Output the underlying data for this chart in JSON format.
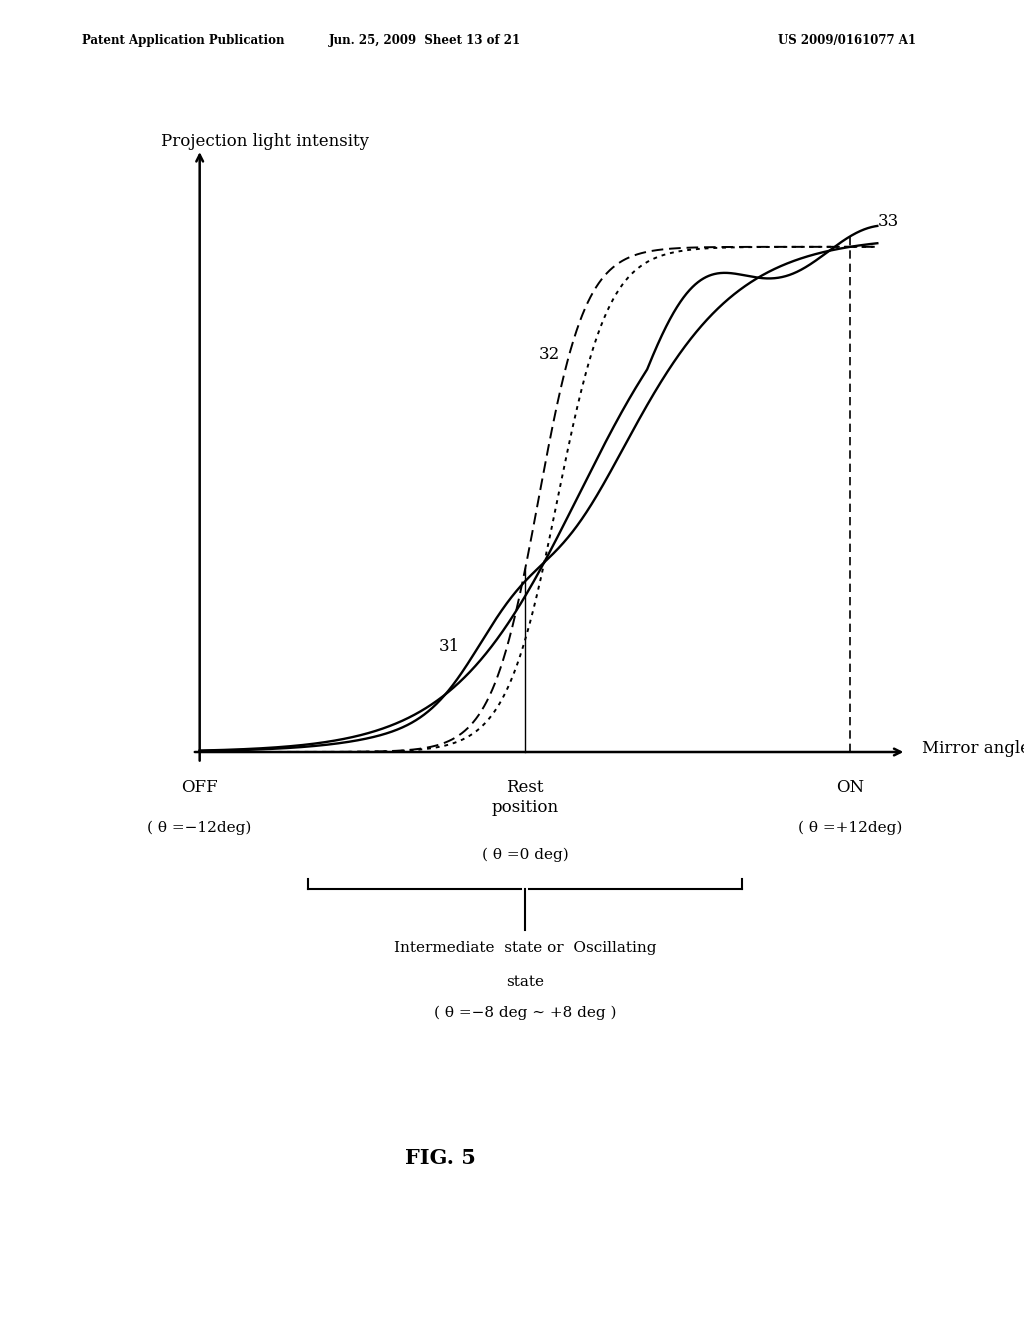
{
  "background_color": "#ffffff",
  "header_left": "Patent Application Publication",
  "header_center": "Jun. 25, 2009  Sheet 13 of 21",
  "header_right": "US 2009/0161077 A1",
  "ylabel": "Projection light intensity",
  "xlabel": "Mirror angle",
  "off_label": "OFF",
  "off_theta": "( θ =−12deg)",
  "rest_label": "Rest\nposition",
  "rest_theta": "( θ =0 deg)",
  "on_label": "ON",
  "on_theta": "( θ =+12deg)",
  "intermediate_line1": "Intermediate  state or  Oscillating",
  "intermediate_line2": "state",
  "intermediate_line3": "( θ =−8 deg ∼ +8 deg )",
  "fig_label": "FIG. 5",
  "label31": "31",
  "label32": "32",
  "label33": "33"
}
